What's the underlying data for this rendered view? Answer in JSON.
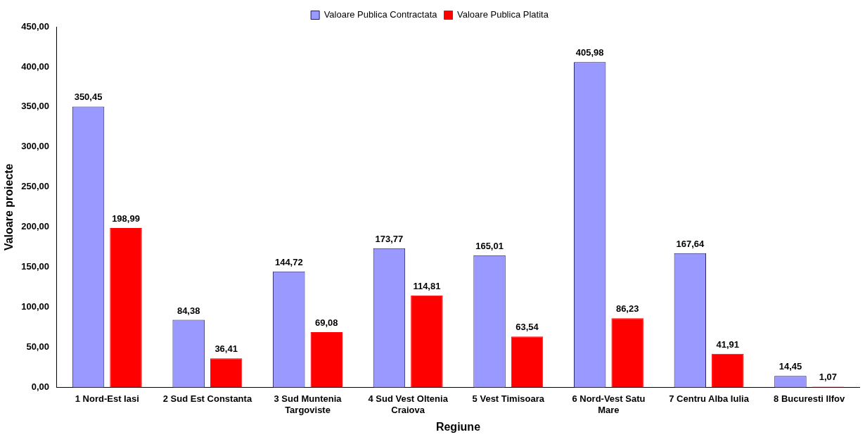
{
  "chart_data": {
    "type": "bar",
    "xlabel": "Regiune",
    "ylabel": "Valoare proiecte",
    "categories": [
      "1 Nord-Est Iasi",
      "2 Sud Est Constanta",
      "3 Sud Muntenia Targoviste",
      "4 Sud Vest Oltenia Craiova",
      "5 Vest Timisoara",
      "6 Nord-Vest Satu Mare",
      "7 Centru Alba Iulia",
      "8 Bucuresti Ilfov"
    ],
    "series": [
      {
        "name": "Valoare Publica Contractata",
        "color": "#9999ff",
        "values": [
          350.45,
          84.38,
          144.72,
          173.77,
          165.01,
          405.98,
          167.64,
          14.45
        ],
        "value_labels": [
          "350,45",
          "84,38",
          "144,72",
          "173,77",
          "165,01",
          "405,98",
          "167,64",
          "14,45"
        ]
      },
      {
        "name": "Valoare Publica Platita",
        "color": "#ff0000",
        "values": [
          198.99,
          36.41,
          69.08,
          114.81,
          63.54,
          86.23,
          41.91,
          1.07
        ],
        "value_labels": [
          "198,99",
          "36,41",
          "69,08",
          "114,81",
          "63,54",
          "86,23",
          "41,91",
          "1,07"
        ]
      }
    ],
    "ylim": [
      0,
      450
    ],
    "yticks": [
      {
        "value": 0,
        "label": "0,00"
      },
      {
        "value": 50,
        "label": "50,00"
      },
      {
        "value": 100,
        "label": "100,00"
      },
      {
        "value": 150,
        "label": "150,00"
      },
      {
        "value": 200,
        "label": "200,00"
      },
      {
        "value": 250,
        "label": "250,00"
      },
      {
        "value": 300,
        "label": "300,00"
      },
      {
        "value": 350,
        "label": "350,00"
      },
      {
        "value": 400,
        "label": "400,00"
      },
      {
        "value": 450,
        "label": "450,00"
      }
    ],
    "grid": false,
    "legend": "top"
  }
}
